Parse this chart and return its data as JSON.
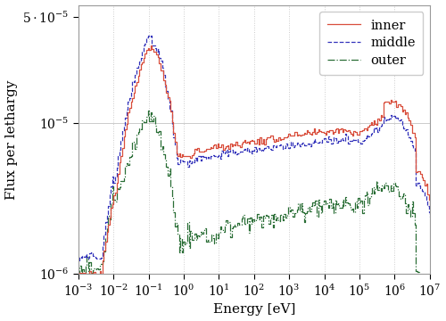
{
  "xlabel": "Energy [eV]",
  "ylabel": "Flux per lethargy",
  "xlim": [
    0.001,
    10000000.0
  ],
  "ylim": [
    1e-06,
    6e-05
  ],
  "inner_color": "#d94f3d",
  "middle_color": "#3333bb",
  "outer_color": "#2a6e36",
  "inner_style": "-",
  "middle_style": "--",
  "outer_style": "-.",
  "legend_labels": [
    "inner",
    "middle",
    "outer"
  ],
  "figsize": [
    5.0,
    3.6
  ],
  "dpi": 100
}
